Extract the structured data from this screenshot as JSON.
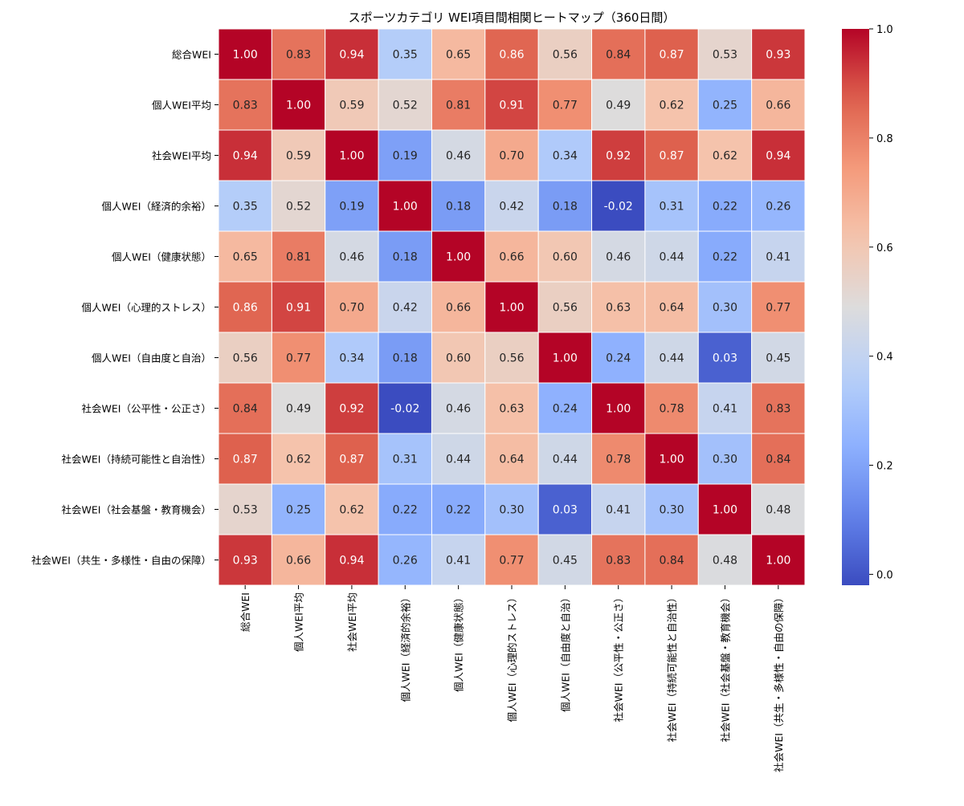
{
  "chart_data": {
    "type": "heatmap",
    "title": "スポーツカテゴリ WEI項目間相関ヒートマップ（360日間）",
    "xlabel": "",
    "ylabel": "",
    "labels": [
      "総合WEI",
      "個人WEI平均",
      "社会WEI平均",
      "個人WEI（経済的余裕）",
      "個人WEI（健康状態）",
      "個人WEI（心理的ストレス）",
      "個人WEI（自由度と自治）",
      "社会WEI（公平性・公正さ）",
      "社会WEI（持続可能性と自治性）",
      "社会WEI（社会基盤・教育機会）",
      "社会WEI（共生・多様性・自由の保障）"
    ],
    "matrix": [
      [
        1.0,
        0.83,
        0.94,
        0.35,
        0.65,
        0.86,
        0.56,
        0.84,
        0.87,
        0.53,
        0.93
      ],
      [
        0.83,
        1.0,
        0.59,
        0.52,
        0.81,
        0.91,
        0.77,
        0.49,
        0.62,
        0.25,
        0.66
      ],
      [
        0.94,
        0.59,
        1.0,
        0.19,
        0.46,
        0.7,
        0.34,
        0.92,
        0.87,
        0.62,
        0.94
      ],
      [
        0.35,
        0.52,
        0.19,
        1.0,
        0.18,
        0.42,
        0.18,
        -0.02,
        0.31,
        0.22,
        0.26
      ],
      [
        0.65,
        0.81,
        0.46,
        0.18,
        1.0,
        0.66,
        0.6,
        0.46,
        0.44,
        0.22,
        0.41
      ],
      [
        0.86,
        0.91,
        0.7,
        0.42,
        0.66,
        1.0,
        0.56,
        0.63,
        0.64,
        0.3,
        0.77
      ],
      [
        0.56,
        0.77,
        0.34,
        0.18,
        0.6,
        0.56,
        1.0,
        0.24,
        0.44,
        0.03,
        0.45
      ],
      [
        0.84,
        0.49,
        0.92,
        -0.02,
        0.46,
        0.63,
        0.24,
        1.0,
        0.78,
        0.41,
        0.83
      ],
      [
        0.87,
        0.62,
        0.87,
        0.31,
        0.44,
        0.64,
        0.44,
        0.78,
        1.0,
        0.3,
        0.84
      ],
      [
        0.53,
        0.25,
        0.62,
        0.22,
        0.22,
        0.3,
        0.03,
        0.41,
        0.3,
        1.0,
        0.48
      ],
      [
        0.93,
        0.66,
        0.94,
        0.26,
        0.41,
        0.77,
        0.45,
        0.83,
        0.84,
        0.48,
        1.0
      ]
    ],
    "colormap": "coolwarm",
    "vmin": -0.02,
    "vmax": 1.0,
    "colorbar_ticks": [
      "0.0",
      "0.2",
      "0.4",
      "0.6",
      "0.8",
      "1.0"
    ],
    "colorbar_tick_values": [
      0.0,
      0.2,
      0.4,
      0.6,
      0.8,
      1.0
    ]
  }
}
